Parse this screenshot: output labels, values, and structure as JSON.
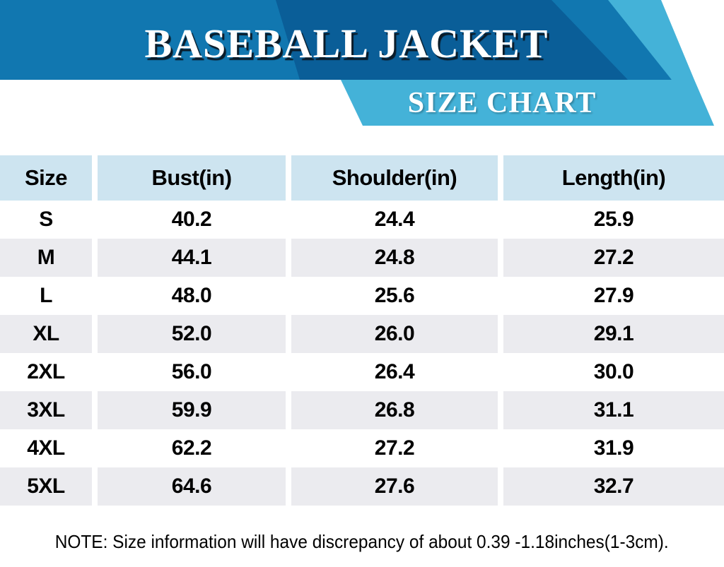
{
  "header": {
    "title": "BASEBALL JACKET",
    "subtitle": "SIZE CHART"
  },
  "colors": {
    "banner_base": "#1177b0",
    "banner_dark": "#0a5e98",
    "banner_light": "#44b2d8",
    "table_header_bg": "#cde4f0",
    "table_stripe_bg": "#ebebef"
  },
  "table": {
    "columns": [
      "Size",
      "Bust(in)",
      "Shoulder(in)",
      "Length(in)"
    ],
    "rows": [
      {
        "size": "S",
        "bust": "40.2",
        "shoulder": "24.4",
        "length": "25.9"
      },
      {
        "size": "M",
        "bust": "44.1",
        "shoulder": "24.8",
        "length": "27.2"
      },
      {
        "size": "L",
        "bust": "48.0",
        "shoulder": "25.6",
        "length": "27.9"
      },
      {
        "size": "XL",
        "bust": "52.0",
        "shoulder": "26.0",
        "length": "29.1"
      },
      {
        "size": "2XL",
        "bust": "56.0",
        "shoulder": "26.4",
        "length": "30.0"
      },
      {
        "size": "3XL",
        "bust": "59.9",
        "shoulder": "26.8",
        "length": "31.1"
      },
      {
        "size": "4XL",
        "bust": "62.2",
        "shoulder": "27.2",
        "length": "31.9"
      },
      {
        "size": "5XL",
        "bust": "64.6",
        "shoulder": "27.6",
        "length": "32.7"
      }
    ]
  },
  "note": "NOTE: Size information will have discrepancy of about 0.39 -1.18inches(1-3cm)."
}
